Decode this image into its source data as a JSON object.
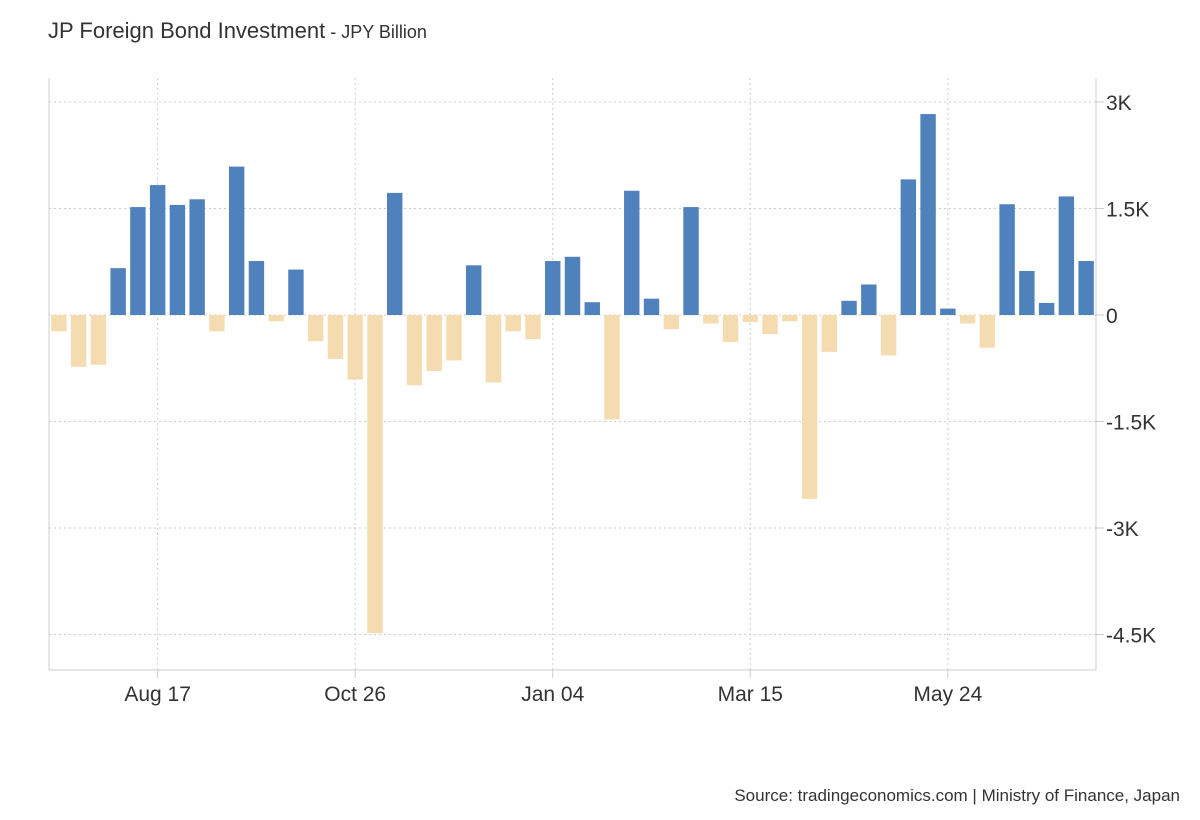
{
  "header": {
    "title": "JP Foreign Bond Investment",
    "separator": " - ",
    "subtitle": "JPY Billion"
  },
  "source": "Source: tradingeconomics.com | Ministry of Finance, Japan",
  "colors": {
    "positive": "#4f81bd",
    "negative": "#f5dcb0",
    "grid": "#cccccc",
    "axis": "#cccccc"
  },
  "chart_data": {
    "type": "bar",
    "title": "JP Foreign Bond Investment",
    "subtitle": "JPY Billion",
    "ylim": [
      -5000,
      3300
    ],
    "yticks": [
      {
        "value": 3000,
        "label": "3K"
      },
      {
        "value": 1500,
        "label": "1.5K"
      },
      {
        "value": 0,
        "label": "0"
      },
      {
        "value": -1500,
        "label": "-1.5K"
      },
      {
        "value": -3000,
        "label": "-3K"
      },
      {
        "value": -4500,
        "label": "-4.5K"
      }
    ],
    "xticks": [
      {
        "index": 5,
        "label": "Aug 17"
      },
      {
        "index": 15,
        "label": "Oct 26"
      },
      {
        "index": 25,
        "label": "Jan 04"
      },
      {
        "index": 35,
        "label": "Mar 15"
      },
      {
        "index": 45,
        "label": "May 24"
      }
    ],
    "grid": true,
    "y_axis_position": "right",
    "values": [
      -230,
      -730,
      -700,
      660,
      1520,
      1830,
      1550,
      1630,
      -230,
      2090,
      760,
      -90,
      640,
      -370,
      -620,
      -910,
      -4480,
      1720,
      -990,
      -790,
      -640,
      700,
      -950,
      -230,
      -340,
      760,
      820,
      180,
      -1470,
      1750,
      230,
      -200,
      1520,
      -120,
      -380,
      -100,
      -270,
      -90,
      -2590,
      -520,
      200,
      430,
      -570,
      1910,
      2830,
      90,
      -120,
      -460,
      1560,
      620,
      170,
      1670,
      760
    ]
  }
}
